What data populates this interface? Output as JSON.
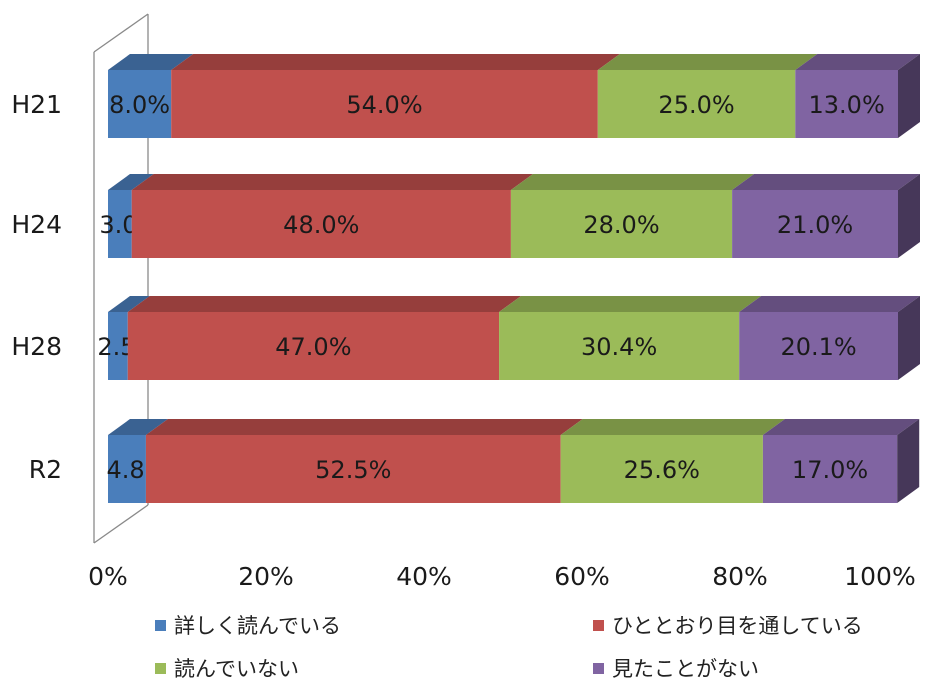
{
  "chart_data": {
    "type": "bar",
    "orientation": "horizontal",
    "stacked": true,
    "percent": true,
    "categories": [
      "H21",
      "H24",
      "H28",
      "R2"
    ],
    "series": [
      {
        "name": "詳しく読んでいる",
        "values": [
          8.0,
          3.0,
          2.5,
          4.8
        ],
        "labels": [
          "8.0%",
          "3.0%",
          "2.5%",
          "4.8%"
        ],
        "color": "#4a7ebb"
      },
      {
        "name": "ひととおり目を通している",
        "values": [
          54.0,
          48.0,
          47.0,
          52.5
        ],
        "labels": [
          "54.0%",
          "48.0%",
          "47.0%",
          "52.5%"
        ],
        "color": "#c0504d"
      },
      {
        "name": "読んでいない",
        "values": [
          25.0,
          28.0,
          30.4,
          25.6
        ],
        "labels": [
          "25.0%",
          "28.0%",
          "30.4%",
          "25.6%"
        ],
        "color": "#9bbb59"
      },
      {
        "name": "見たことがない",
        "values": [
          13.0,
          21.0,
          20.1,
          17.0
        ],
        "labels": [
          "13.0%",
          "21.0%",
          "20.1%",
          "17.0%"
        ],
        "color": "#8064a2"
      }
    ],
    "xticks": [
      "0%",
      "20%",
      "40%",
      "60%",
      "80%",
      "100%"
    ],
    "xlim": [
      0,
      100
    ],
    "grid": false,
    "legend_position": "bottom"
  }
}
